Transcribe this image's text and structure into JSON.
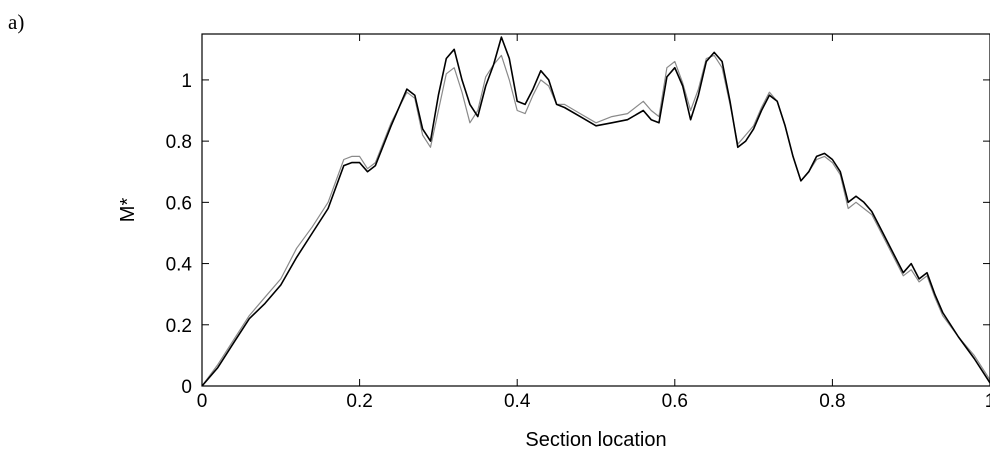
{
  "figure": {
    "panel_label": "a)"
  },
  "chart_data": {
    "type": "line",
    "xlabel": "Section location",
    "ylabel": "M*",
    "xlim": [
      0,
      1
    ],
    "ylim": [
      0,
      1.15
    ],
    "xticks": [
      0,
      0.2,
      0.4,
      0.6,
      0.8,
      1
    ],
    "xtick_labels": [
      "0",
      "0.2",
      "0.4",
      "0.6",
      "0.8",
      "1"
    ],
    "yticks": [
      0,
      0.2,
      0.4,
      0.6,
      0.8,
      1
    ],
    "ytick_labels": [
      "0",
      "0.2",
      "0.4",
      "0.6",
      "0.8",
      "1"
    ],
    "grid": false,
    "series": [
      {
        "color": "#000000",
        "x": [
          0,
          0.02,
          0.04,
          0.06,
          0.08,
          0.1,
          0.12,
          0.14,
          0.16,
          0.18,
          0.19,
          0.2,
          0.21,
          0.22,
          0.24,
          0.26,
          0.27,
          0.28,
          0.29,
          0.3,
          0.31,
          0.32,
          0.33,
          0.34,
          0.35,
          0.36,
          0.37,
          0.38,
          0.39,
          0.4,
          0.41,
          0.42,
          0.43,
          0.44,
          0.45,
          0.46,
          0.48,
          0.5,
          0.52,
          0.54,
          0.56,
          0.57,
          0.58,
          0.59,
          0.6,
          0.61,
          0.62,
          0.63,
          0.64,
          0.65,
          0.66,
          0.67,
          0.68,
          0.69,
          0.7,
          0.71,
          0.72,
          0.73,
          0.74,
          0.75,
          0.76,
          0.77,
          0.78,
          0.79,
          0.8,
          0.81,
          0.82,
          0.83,
          0.84,
          0.85,
          0.86,
          0.87,
          0.88,
          0.89,
          0.9,
          0.91,
          0.92,
          0.93,
          0.94,
          0.96,
          0.98,
          1.0
        ],
        "y": [
          0.0,
          0.06,
          0.14,
          0.22,
          0.27,
          0.33,
          0.42,
          0.5,
          0.58,
          0.72,
          0.73,
          0.73,
          0.7,
          0.72,
          0.85,
          0.97,
          0.95,
          0.84,
          0.8,
          0.95,
          1.07,
          1.1,
          1.0,
          0.92,
          0.88,
          0.98,
          1.05,
          1.14,
          1.07,
          0.93,
          0.92,
          0.97,
          1.03,
          1.0,
          0.92,
          0.91,
          0.88,
          0.85,
          0.86,
          0.87,
          0.9,
          0.87,
          0.86,
          1.01,
          1.04,
          0.98,
          0.87,
          0.95,
          1.06,
          1.09,
          1.06,
          0.93,
          0.78,
          0.8,
          0.84,
          0.9,
          0.95,
          0.93,
          0.85,
          0.75,
          0.67,
          0.7,
          0.75,
          0.76,
          0.74,
          0.7,
          0.6,
          0.62,
          0.6,
          0.57,
          0.52,
          0.47,
          0.42,
          0.37,
          0.4,
          0.35,
          0.37,
          0.3,
          0.24,
          0.16,
          0.09,
          0.01
        ]
      },
      {
        "color": "#8a8a8a",
        "x": [
          0,
          0.02,
          0.04,
          0.06,
          0.08,
          0.1,
          0.12,
          0.14,
          0.16,
          0.18,
          0.19,
          0.2,
          0.21,
          0.22,
          0.24,
          0.26,
          0.27,
          0.28,
          0.29,
          0.3,
          0.31,
          0.32,
          0.33,
          0.34,
          0.35,
          0.36,
          0.37,
          0.38,
          0.39,
          0.4,
          0.41,
          0.42,
          0.43,
          0.44,
          0.45,
          0.46,
          0.48,
          0.5,
          0.52,
          0.54,
          0.56,
          0.57,
          0.58,
          0.59,
          0.6,
          0.61,
          0.62,
          0.63,
          0.64,
          0.65,
          0.66,
          0.67,
          0.68,
          0.69,
          0.7,
          0.71,
          0.72,
          0.73,
          0.74,
          0.75,
          0.76,
          0.77,
          0.78,
          0.79,
          0.8,
          0.81,
          0.82,
          0.83,
          0.84,
          0.85,
          0.86,
          0.87,
          0.88,
          0.89,
          0.9,
          0.91,
          0.92,
          0.93,
          0.94,
          0.96,
          0.98,
          1.0
        ],
        "y": [
          0.0,
          0.07,
          0.15,
          0.23,
          0.29,
          0.35,
          0.45,
          0.52,
          0.6,
          0.74,
          0.75,
          0.75,
          0.71,
          0.73,
          0.86,
          0.96,
          0.94,
          0.82,
          0.78,
          0.9,
          1.02,
          1.04,
          0.96,
          0.86,
          0.9,
          1.01,
          1.05,
          1.08,
          1.0,
          0.9,
          0.89,
          0.95,
          1.0,
          0.98,
          0.92,
          0.92,
          0.89,
          0.86,
          0.88,
          0.89,
          0.93,
          0.9,
          0.88,
          1.04,
          1.06,
          0.99,
          0.9,
          0.97,
          1.07,
          1.08,
          1.04,
          0.92,
          0.79,
          0.82,
          0.85,
          0.91,
          0.96,
          0.93,
          0.85,
          0.75,
          0.67,
          0.7,
          0.74,
          0.75,
          0.73,
          0.69,
          0.58,
          0.6,
          0.58,
          0.56,
          0.51,
          0.46,
          0.41,
          0.36,
          0.38,
          0.34,
          0.36,
          0.29,
          0.23,
          0.16,
          0.1,
          0.02
        ]
      }
    ]
  }
}
